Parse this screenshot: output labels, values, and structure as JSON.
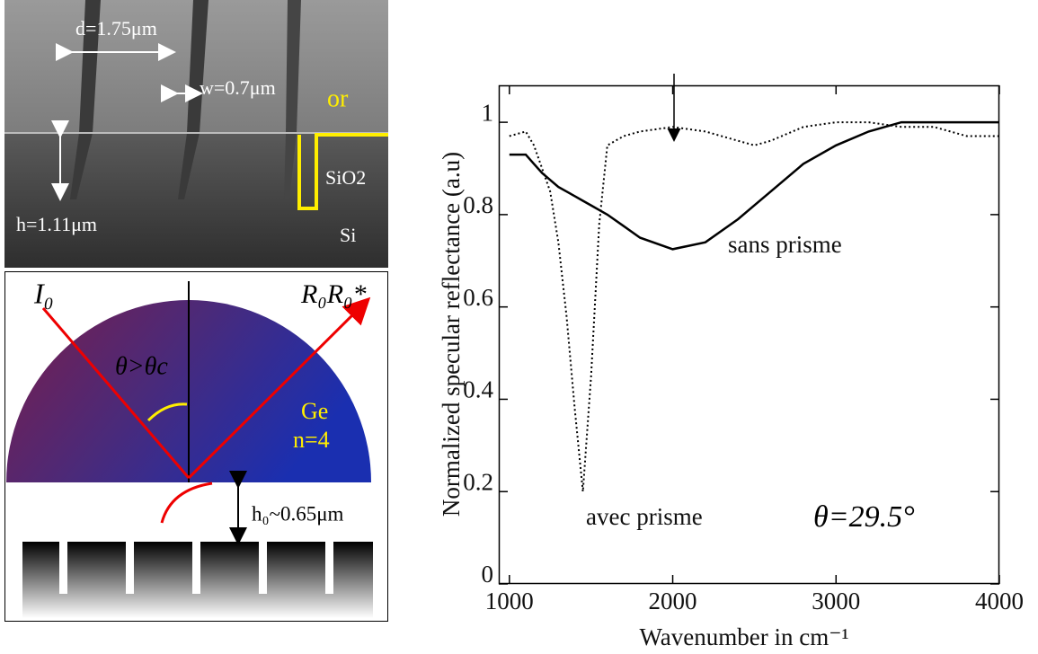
{
  "sem_image": {
    "labels": {
      "d": "d=1.75μm",
      "w": "w=0.7μm",
      "h": "h=1.11μm",
      "or": "or",
      "sio2": "SiO2",
      "si": "Si"
    }
  },
  "diagram": {
    "labels": {
      "incident": "I₀",
      "reflected": "R₀R₀*",
      "angle": "θ>θc",
      "material": "Ge",
      "index": "n=4",
      "gap": "h₀~0.65μm"
    }
  },
  "chart_data": {
    "type": "line",
    "xlabel": "Wavenumber in cm⁻¹",
    "ylabel": "Normalized specular reflectance (a.u)",
    "annotation": "θ=29.5°",
    "x": [
      1000,
      1100,
      1150,
      1200,
      1250,
      1300,
      1350,
      1400,
      1450,
      1500,
      1550,
      1600,
      1700,
      1800,
      2000,
      2200,
      2400,
      2500,
      2600,
      2800,
      3000,
      3200,
      3400,
      3600,
      3800,
      4000
    ],
    "series": [
      {
        "name": "sans prisme",
        "color": "#000000",
        "dash": "solid",
        "values": [
          0.93,
          0.93,
          0.91,
          0.89,
          0.875,
          0.86,
          0.85,
          0.84,
          0.83,
          0.82,
          0.81,
          0.8,
          0.775,
          0.75,
          0.725,
          0.74,
          0.79,
          0.82,
          0.85,
          0.91,
          0.95,
          0.98,
          1.0,
          1.0,
          1.0,
          1.0
        ]
      },
      {
        "name": "avec prisme",
        "color": "#000000",
        "dash": "dotted",
        "values": [
          0.97,
          0.98,
          0.95,
          0.9,
          0.85,
          0.74,
          0.58,
          0.38,
          0.2,
          0.45,
          0.78,
          0.95,
          0.97,
          0.98,
          0.99,
          0.98,
          0.96,
          0.95,
          0.96,
          0.99,
          1.0,
          1.0,
          0.99,
          0.99,
          0.97,
          0.97
        ]
      }
    ],
    "xlim": [
      935,
      4000
    ],
    "ylim": [
      0,
      1.08
    ],
    "xticks": [
      1000,
      2000,
      3000,
      4000
    ],
    "yticks": [
      0,
      0.2,
      0.4,
      0.6,
      0.8,
      1
    ]
  }
}
